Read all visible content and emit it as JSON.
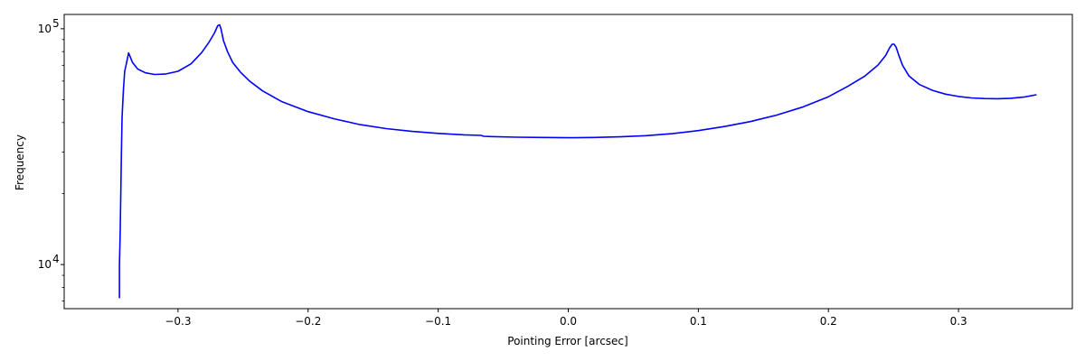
{
  "chart_data": {
    "type": "line",
    "title": "",
    "xlabel": "Pointing Error [arcsec]",
    "ylabel": "Frequency",
    "yscale": "log",
    "xlim": [
      -0.3875,
      0.3875
    ],
    "ylim": [
      6500,
      115000
    ],
    "grid": false,
    "legend": "none",
    "line_color": "#0000ff",
    "x_ticks": [
      {
        "value": -0.3,
        "label": "−0.3"
      },
      {
        "value": -0.2,
        "label": "−0.2"
      },
      {
        "value": -0.1,
        "label": "−0.1"
      },
      {
        "value": 0.0,
        "label": "0.0"
      },
      {
        "value": 0.1,
        "label": "0.1"
      },
      {
        "value": 0.2,
        "label": "0.2"
      },
      {
        "value": 0.3,
        "label": "0.3"
      }
    ],
    "y_ticks": [
      {
        "value": 10000,
        "base": "10",
        "exp": "4"
      },
      {
        "value": 100000,
        "base": "10",
        "exp": "5"
      }
    ],
    "series": [
      {
        "name": "frequency",
        "x": [
          -0.345,
          -0.345,
          -0.3445,
          -0.344,
          -0.3435,
          -0.343,
          -0.342,
          -0.341,
          -0.3395,
          -0.338,
          -0.335,
          -0.331,
          -0.325,
          -0.318,
          -0.31,
          -0.3,
          -0.29,
          -0.282,
          -0.276,
          -0.272,
          -0.2695,
          -0.268,
          -0.267,
          -0.265,
          -0.262,
          -0.258,
          -0.252,
          -0.245,
          -0.235,
          -0.22,
          -0.2,
          -0.18,
          -0.16,
          -0.14,
          -0.12,
          -0.1,
          -0.08,
          -0.067,
          -0.065,
          -0.06,
          -0.04,
          -0.02,
          0.0,
          0.02,
          0.04,
          0.06,
          0.08,
          0.1,
          0.12,
          0.14,
          0.16,
          0.18,
          0.2,
          0.215,
          0.228,
          0.238,
          0.244,
          0.247,
          0.249,
          0.2505,
          0.252,
          0.254,
          0.257,
          0.262,
          0.27,
          0.28,
          0.29,
          0.3,
          0.31,
          0.32,
          0.33,
          0.34,
          0.35,
          0.36
        ],
        "y": [
          7200,
          10000,
          13500,
          20000,
          30000,
          42000,
          55000,
          66000,
          72000,
          79000,
          72000,
          67500,
          65000,
          64000,
          64200,
          66000,
          71000,
          79000,
          88000,
          96000,
          103000,
          104000,
          100000,
          89000,
          80000,
          72000,
          65500,
          60000,
          54500,
          49000,
          44500,
          41500,
          39200,
          37700,
          36700,
          36000,
          35500,
          35300,
          35000,
          34900,
          34700,
          34600,
          34500,
          34600,
          34800,
          35200,
          35900,
          37000,
          38500,
          40400,
          43000,
          46500,
          51500,
          57000,
          63000,
          70000,
          77000,
          83000,
          86000,
          86000,
          83500,
          77500,
          70000,
          63000,
          58000,
          54800,
          52800,
          51600,
          50900,
          50600,
          50500,
          50700,
          51300,
          52500
        ]
      }
    ]
  }
}
